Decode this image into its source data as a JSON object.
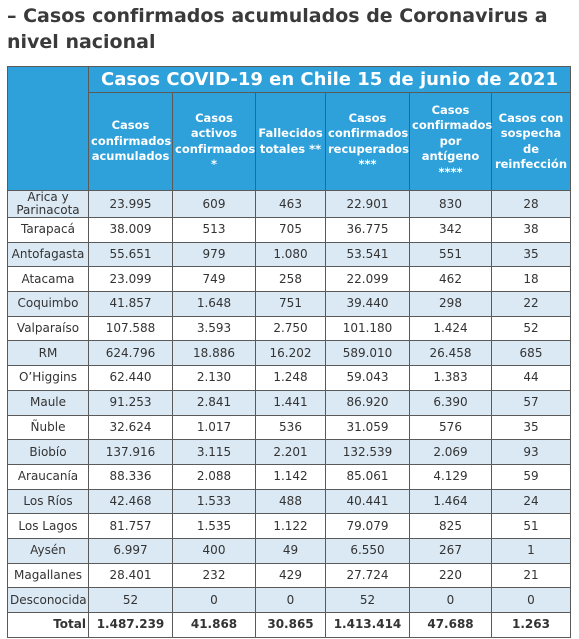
{
  "heading": "– Casos confirmados acumulados de Coronavirus a nivel nacional",
  "table": {
    "title": "Casos COVID-19 en Chile 15 de junio de 2021",
    "columns": [
      "Casos confirmados acumulados",
      "Casos activos confirmados *",
      "Fallecidos totales **",
      "Casos confirmados recuperados ***",
      "Casos confirmados por antígeno ****",
      "Casos con sospecha de reinfección"
    ],
    "rows": [
      [
        "Arica y Parinacota",
        "23.995",
        "609",
        "463",
        "22.901",
        "830",
        "28"
      ],
      [
        "Tarapacá",
        "38.009",
        "513",
        "705",
        "36.775",
        "342",
        "38"
      ],
      [
        "Antofagasta",
        "55.651",
        "979",
        "1.080",
        "53.541",
        "551",
        "35"
      ],
      [
        "Atacama",
        "23.099",
        "749",
        "258",
        "22.099",
        "462",
        "18"
      ],
      [
        "Coquimbo",
        "41.857",
        "1.648",
        "751",
        "39.440",
        "298",
        "22"
      ],
      [
        "Valparaíso",
        "107.588",
        "3.593",
        "2.750",
        "101.180",
        "1.424",
        "52"
      ],
      [
        "RM",
        "624.796",
        "18.886",
        "16.202",
        "589.010",
        "26.458",
        "685"
      ],
      [
        "O’Higgins",
        "62.440",
        "2.130",
        "1.248",
        "59.043",
        "1.383",
        "44"
      ],
      [
        "Maule",
        "91.253",
        "2.841",
        "1.441",
        "86.920",
        "6.390",
        "57"
      ],
      [
        "Ñuble",
        "32.624",
        "1.017",
        "536",
        "31.059",
        "576",
        "35"
      ],
      [
        "Biobío",
        "137.916",
        "3.115",
        "2.201",
        "132.539",
        "2.069",
        "93"
      ],
      [
        "Araucanía",
        "88.336",
        "2.088",
        "1.142",
        "85.061",
        "4.129",
        "59"
      ],
      [
        "Los Ríos",
        "42.468",
        "1.533",
        "488",
        "40.441",
        "1.464",
        "24"
      ],
      [
        "Los Lagos",
        "81.757",
        "1.535",
        "1.122",
        "79.079",
        "825",
        "51"
      ],
      [
        "Aysén",
        "6.997",
        "400",
        "49",
        "6.550",
        "267",
        "1"
      ],
      [
        "Magallanes",
        "28.401",
        "232",
        "429",
        "27.724",
        "220",
        "21"
      ],
      [
        "Desconocida",
        "52",
        "0",
        "0",
        "52",
        "0",
        "0"
      ],
      [
        "Total",
        "1.487.239",
        "41.868",
        "30.865",
        "1.413.414",
        "47.688",
        "1.263"
      ]
    ]
  }
}
